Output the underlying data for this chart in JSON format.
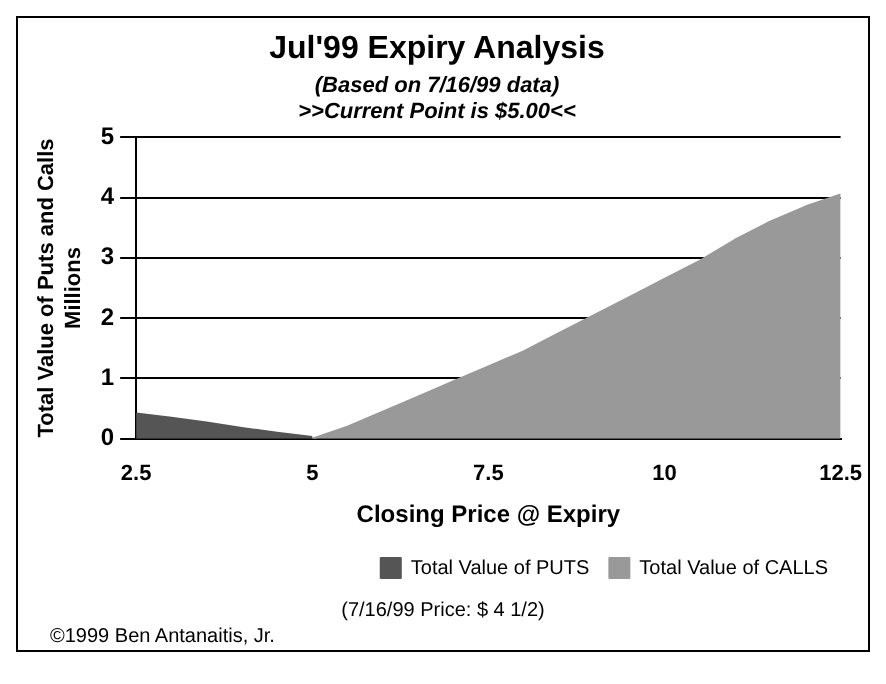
{
  "chart_data": {
    "type": "area",
    "title": "Jul'99 Expiry Analysis",
    "subtitle": "(Based on 7/16/99 data)\n>>Current Point is $5.00<<",
    "xlabel": "Closing Price @ Expiry",
    "ylabel": "Total Value of Puts and Calls\nMillions",
    "annotations": [
      "(7/16/99 Price: $ 4 1/2)",
      "©1999 Ben Antanaitis, Jr."
    ],
    "xlim": [
      2.5,
      12.5
    ],
    "xticks": [
      2.5,
      5,
      7.5,
      10,
      12.5
    ],
    "ylim": [
      0,
      5
    ],
    "yticks": [
      0,
      1,
      2,
      3,
      4,
      5
    ],
    "grid": "y",
    "legend": "bottom right",
    "series": [
      {
        "name": "Total Value of PUTS",
        "color": "#555555",
        "x": [
          2.5,
          3,
          3.5,
          4,
          4.5,
          5
        ],
        "values": [
          0.42,
          0.35,
          0.27,
          0.18,
          0.1,
          0.03
        ]
      },
      {
        "name": "Total Value of CALLS",
        "color": "#999999",
        "x": [
          5,
          5.5,
          6,
          6.5,
          7,
          7.5,
          8,
          8.5,
          9,
          9.5,
          10,
          10.5,
          11,
          11.5,
          12,
          12.5
        ],
        "values": [
          0,
          0.2,
          0.45,
          0.7,
          0.95,
          1.2,
          1.45,
          1.75,
          2.05,
          2.35,
          2.65,
          2.95,
          3.3,
          3.6,
          3.85,
          4.05
        ]
      }
    ]
  }
}
